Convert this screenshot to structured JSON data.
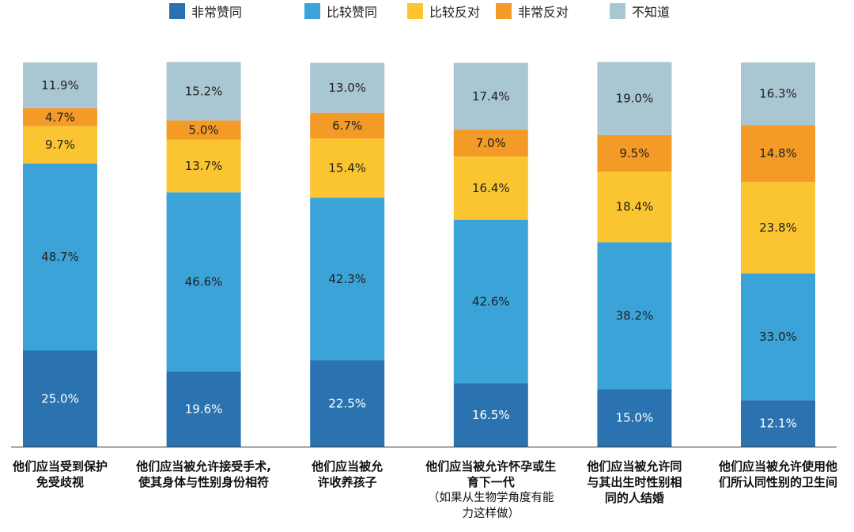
{
  "chart_data": {
    "type": "bar",
    "stacked": true,
    "percent_stacked": true,
    "legend_position": "top",
    "legend": [
      "非常赞同",
      "比较赞同",
      "比较反对",
      "非常反对",
      "不知道"
    ],
    "colors": [
      "#2b73b0",
      "#3ba3d8",
      "#fbc531",
      "#f39b26",
      "#a9c6d3"
    ],
    "categories": [
      {
        "lines": [
          "他们应当受到保护",
          "免受歧视"
        ],
        "note": []
      },
      {
        "lines": [
          "他们应当被允许接受手术,",
          "使其身体与性别身份相符"
        ],
        "note": []
      },
      {
        "lines": [
          "他们应当被允",
          "许收养孩子"
        ],
        "note": []
      },
      {
        "lines": [
          "他们应当被允许怀孕或生",
          "育下一代"
        ],
        "note": [
          "（如果从生物学角度有能",
          "力这样做）"
        ]
      },
      {
        "lines": [
          "他们应当被允许同",
          "与其出生时性别相",
          "同的人结婚"
        ],
        "note": []
      },
      {
        "lines": [
          "他们应当被允许使用他",
          "们所认同性别的卫生间"
        ],
        "note": []
      }
    ],
    "series": [
      {
        "name": "非常赞同",
        "values": [
          25.0,
          19.6,
          22.5,
          16.5,
          15.0,
          12.1
        ],
        "labels": [
          "25.0%",
          "19.6%",
          "22.5%",
          "16.5%",
          "15.0%",
          "12.1%"
        ]
      },
      {
        "name": "比较赞同",
        "values": [
          48.7,
          46.6,
          42.3,
          42.6,
          38.2,
          33.0
        ],
        "labels": [
          "48.7%",
          "46.6%",
          "42.3%",
          "42.6%",
          "38.2%",
          "33.0%"
        ]
      },
      {
        "name": "比较反对",
        "values": [
          9.7,
          13.7,
          15.4,
          16.4,
          18.4,
          23.8
        ],
        "labels": [
          "9.7%",
          "13.7%",
          "15.4%",
          "16.4%",
          "18.4%",
          "23.8%"
        ]
      },
      {
        "name": "非常反对",
        "values": [
          4.7,
          5.0,
          6.7,
          7.0,
          9.5,
          14.8
        ],
        "labels": [
          "4.7%",
          "5.0%",
          "6.7%",
          "7.0%",
          "9.5%",
          "14.8%"
        ]
      },
      {
        "name": "不知道",
        "values": [
          11.9,
          15.2,
          13.0,
          17.4,
          19.0,
          16.3
        ],
        "labels": [
          "11.9%",
          "15.2%",
          "13.0%",
          "17.4%",
          "19.0%",
          "16.3%"
        ]
      }
    ],
    "title": "",
    "xlabel": "",
    "ylabel": "",
    "ylim": [
      0,
      100
    ],
    "grid": false
  }
}
